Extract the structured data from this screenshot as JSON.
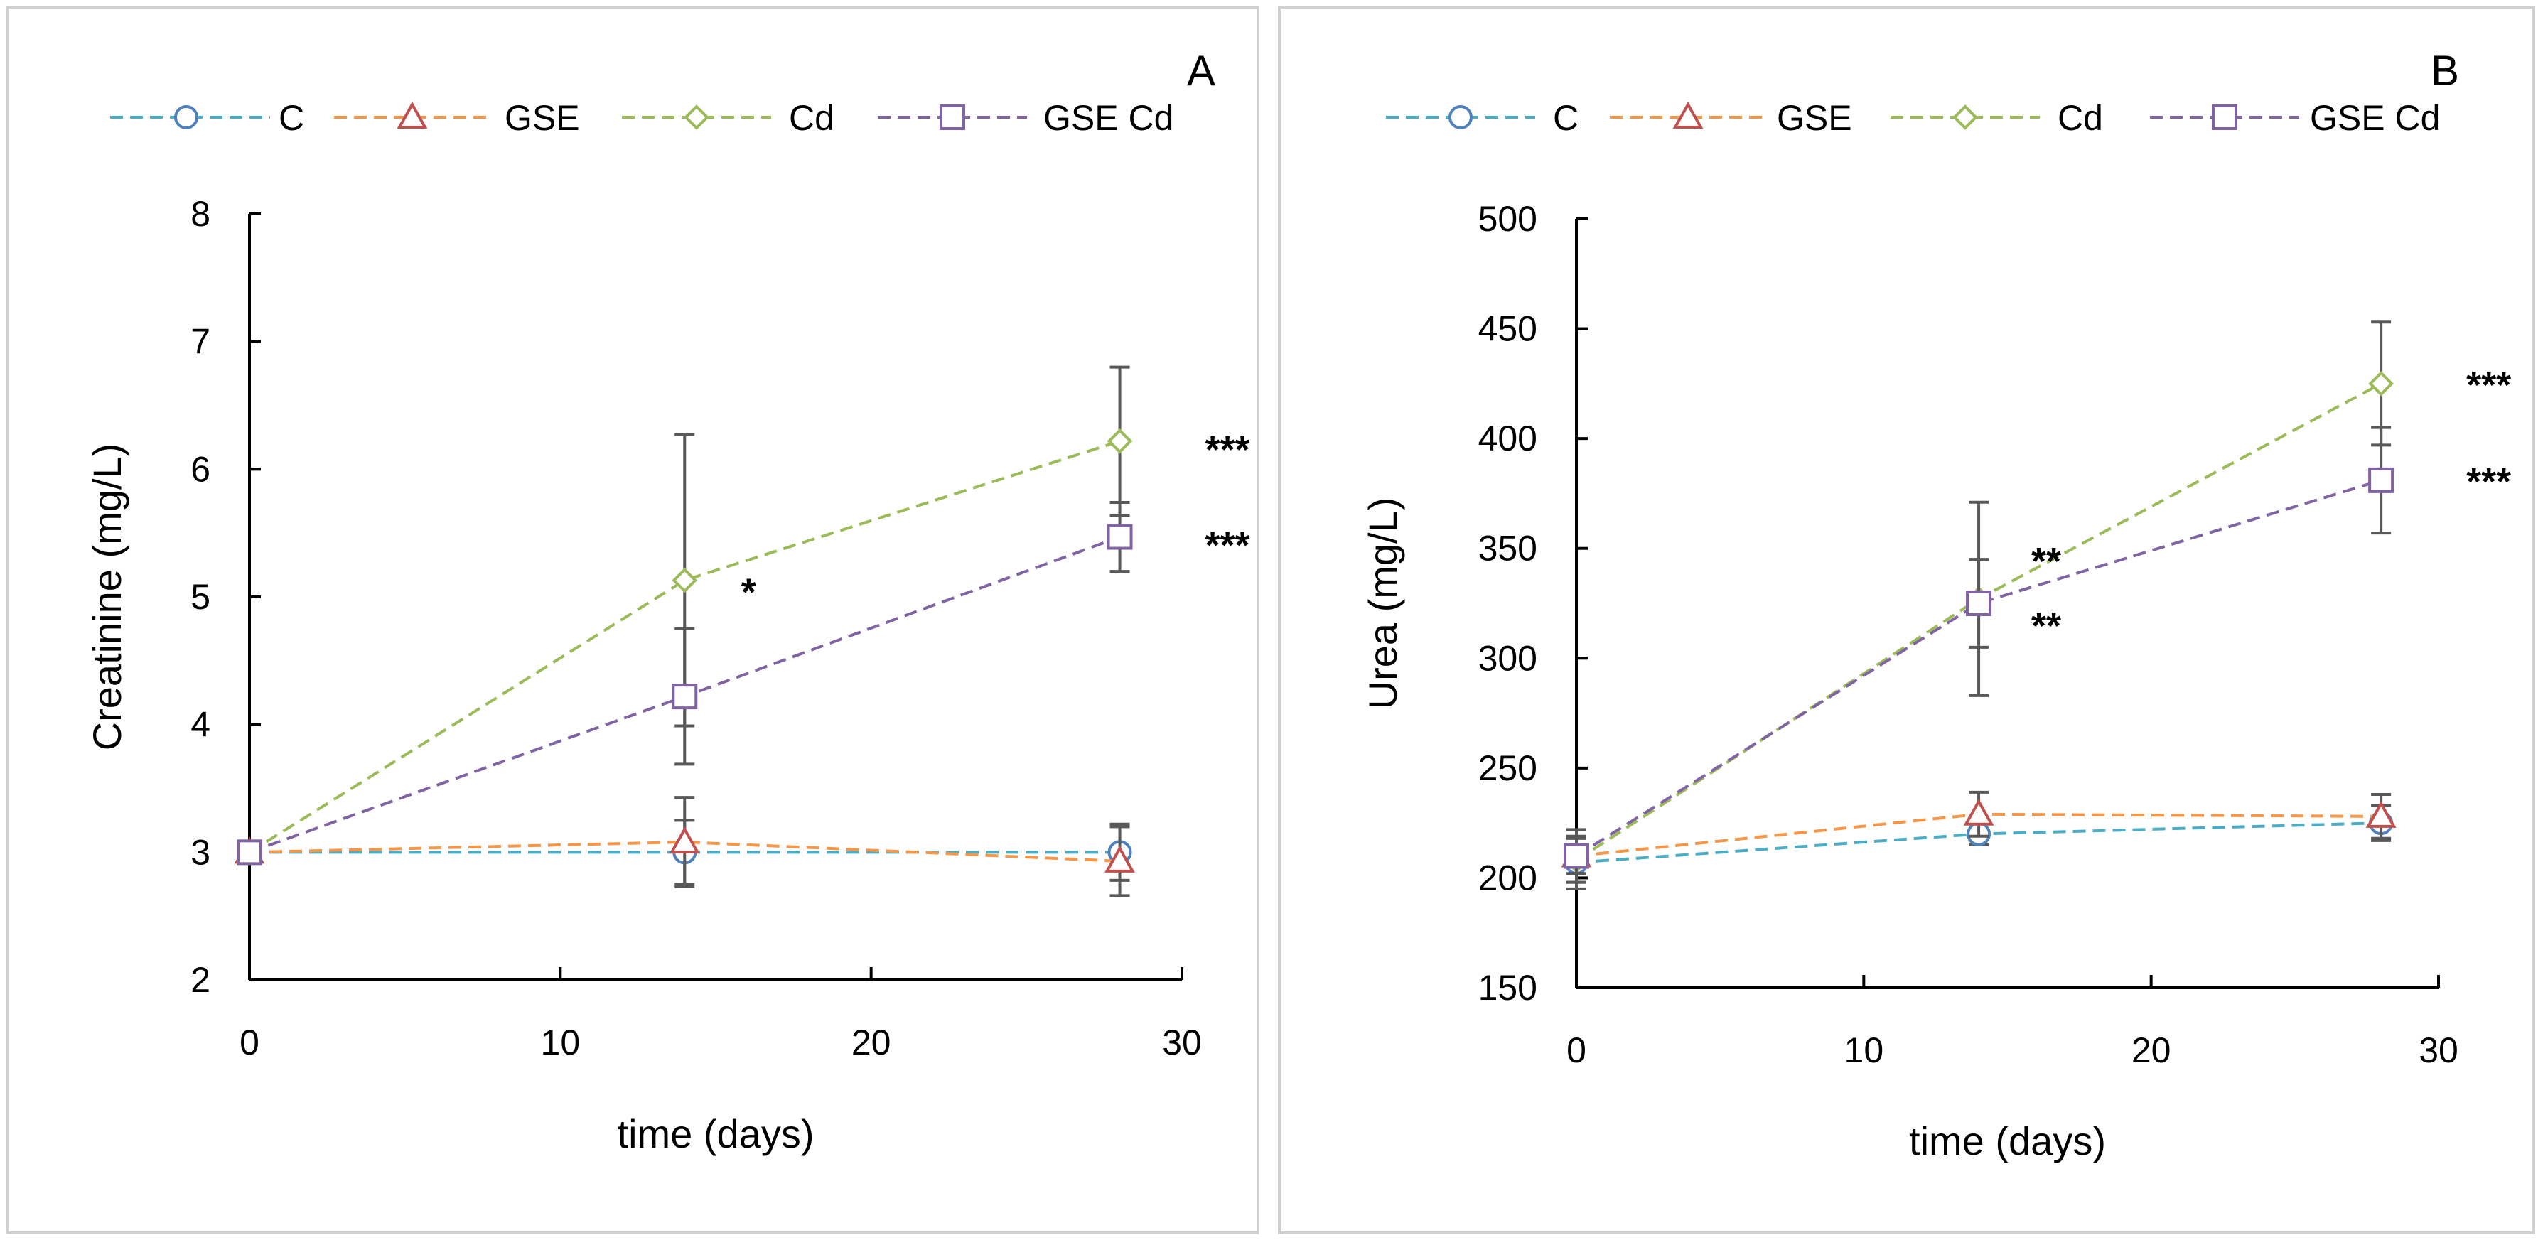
{
  "chart_data": [
    {
      "type": "line",
      "panel_label": "A",
      "title": "",
      "xlabel": "time (days)",
      "ylabel": "Creatinine (mg/L)",
      "xlim": [
        0,
        30
      ],
      "ylim": [
        2,
        8
      ],
      "xticks": [
        0,
        10,
        20,
        30
      ],
      "yticks": [
        2,
        3,
        4,
        5,
        6,
        7,
        8
      ],
      "grid": false,
      "legend_position": "top",
      "x": [
        0,
        14,
        28
      ],
      "series": [
        {
          "name": "C",
          "marker": "circle",
          "line_color": "#4BACC6",
          "marker_color": "#4F81BD",
          "values": [
            3.0,
            3.0,
            3.0
          ],
          "errors": [
            0.05,
            0.25,
            0.22
          ],
          "annotations": [
            "",
            "",
            ""
          ]
        },
        {
          "name": "GSE",
          "marker": "triangle",
          "line_color": "#F79646",
          "marker_color": "#C0504D",
          "values": [
            3.0,
            3.08,
            2.93
          ],
          "errors": [
            0.05,
            0.35,
            0.27
          ],
          "annotations": [
            "",
            "",
            ""
          ]
        },
        {
          "name": "Cd",
          "marker": "diamond",
          "line_color": "#9BBB59",
          "marker_color": "#9BBB59",
          "values": [
            3.0,
            5.13,
            6.22
          ],
          "errors": [
            0.05,
            1.14,
            0.58
          ],
          "annotations": [
            "",
            "*",
            "***"
          ]
        },
        {
          "name": "GSE Cd",
          "marker": "square",
          "line_color": "#8064A2",
          "marker_color": "#8064A2",
          "values": [
            3.0,
            4.22,
            5.47
          ],
          "errors": [
            0.05,
            0.53,
            0.27
          ],
          "annotations": [
            "",
            "",
            "***"
          ]
        }
      ]
    },
    {
      "type": "line",
      "panel_label": "B",
      "title": "",
      "xlabel": "time (days)",
      "ylabel": "Urea (mg/L)",
      "xlim": [
        0,
        30
      ],
      "ylim": [
        150,
        500
      ],
      "xticks": [
        0,
        10,
        20,
        30
      ],
      "yticks": [
        150,
        200,
        250,
        300,
        350,
        400,
        450,
        500
      ],
      "grid": false,
      "legend_position": "top",
      "x": [
        0,
        14,
        28
      ],
      "series": [
        {
          "name": "C",
          "marker": "circle",
          "line_color": "#4BACC6",
          "marker_color": "#4F81BD",
          "values": [
            207,
            220,
            225
          ],
          "errors": [
            12,
            5,
            8
          ],
          "annotations": [
            "",
            "",
            ""
          ]
        },
        {
          "name": "GSE",
          "marker": "triangle",
          "line_color": "#F79646",
          "marker_color": "#C0504D",
          "values": [
            210,
            229,
            228
          ],
          "errors": [
            8,
            10,
            10
          ],
          "annotations": [
            "",
            "",
            ""
          ]
        },
        {
          "name": "Cd",
          "marker": "diamond",
          "line_color": "#9BBB59",
          "marker_color": "#9BBB59",
          "values": [
            208,
            327,
            425
          ],
          "errors": [
            10,
            44,
            28
          ],
          "annotations": [
            "",
            "**",
            "***"
          ]
        },
        {
          "name": "GSE Cd",
          "marker": "square",
          "line_color": "#8064A2",
          "marker_color": "#8064A2",
          "values": [
            210,
            325,
            381
          ],
          "errors": [
            12,
            20,
            24
          ],
          "annotations": [
            "",
            "**",
            "***"
          ]
        }
      ]
    }
  ]
}
